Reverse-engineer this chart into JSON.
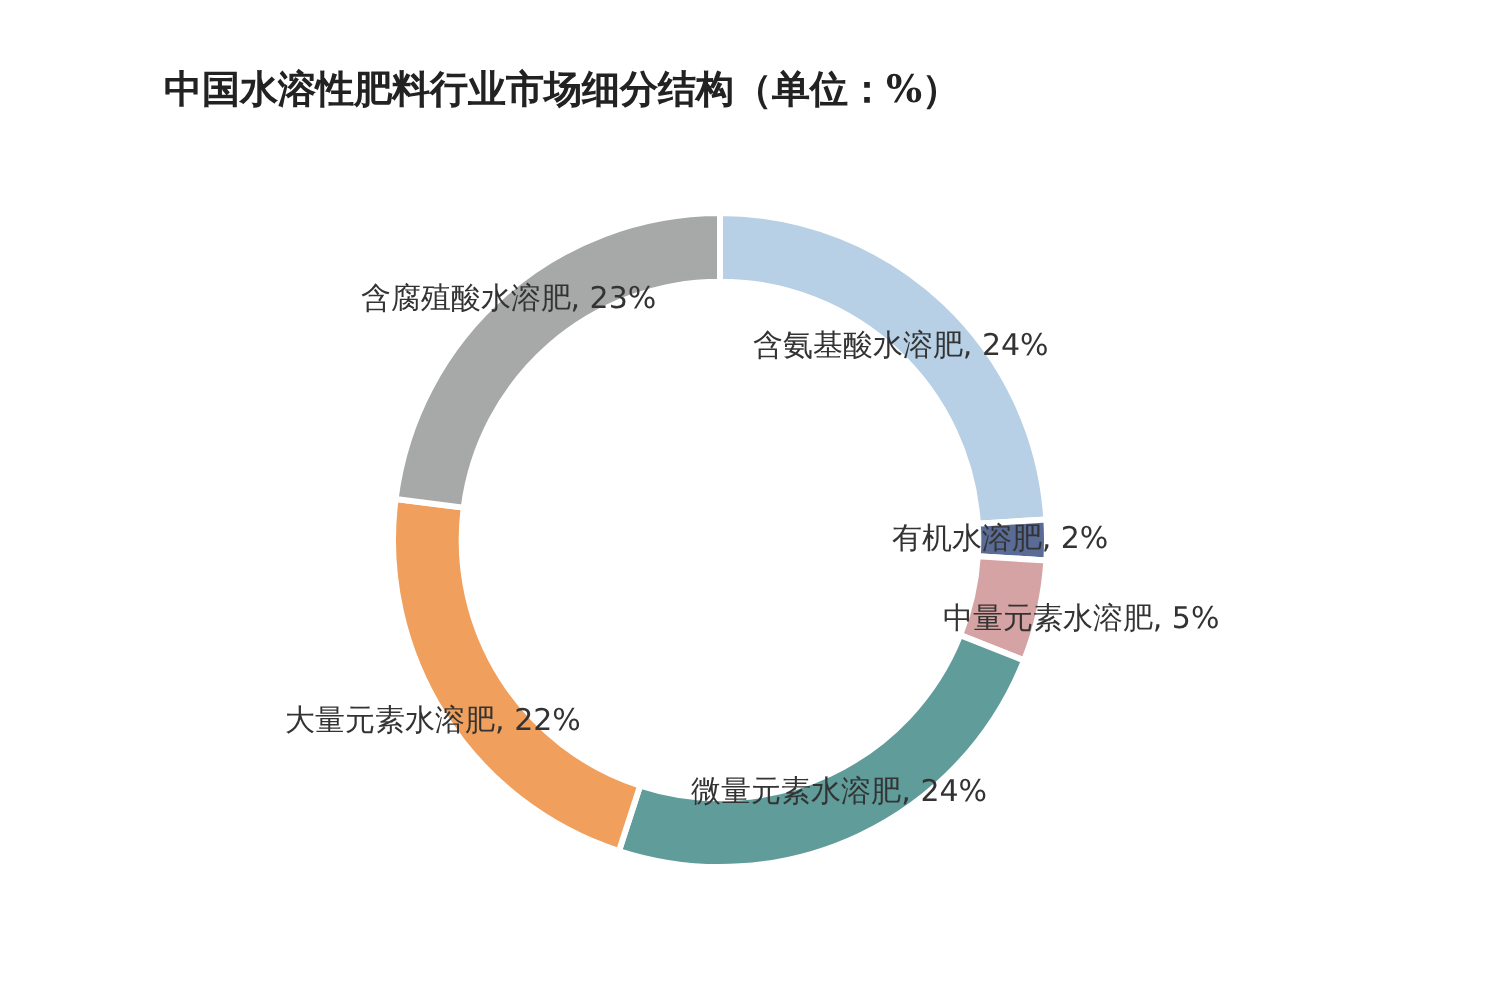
{
  "chart_data": {
    "type": "donut",
    "title": "中国水溶性肥料行业市场细分结构（单位：%）",
    "categories": [
      "含氨基酸水溶肥",
      "有机水溶肥",
      "中量元素水溶肥",
      "微量元素水溶肥",
      "大量元素水溶肥",
      "含腐殖酸水溶肥"
    ],
    "values": [
      24,
      2,
      5,
      24,
      22,
      23
    ],
    "value_labels": [
      "24%",
      "2%",
      "5%",
      "24%",
      "22%",
      "23%"
    ],
    "colors": [
      "#b7d0e6",
      "#5a6c96",
      "#d6a3a4",
      "#5f9c9a",
      "#f0a05c",
      "#a7a9a9"
    ],
    "legend": false
  }
}
